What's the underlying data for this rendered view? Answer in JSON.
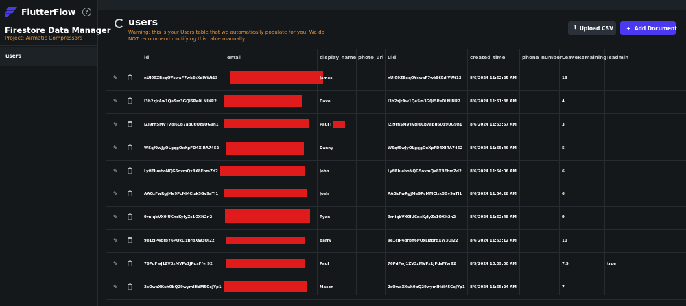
{
  "brand": {
    "name": "FlutterFlow",
    "accent": "#4b39ef",
    "warning_color": "#e8943a",
    "redaction_color": "#e01b1b"
  },
  "sidebar": {
    "title": "Firestore Data Manager",
    "project": "Project: Airmatic Compressors",
    "items": [
      {
        "label": "users"
      }
    ]
  },
  "main": {
    "title": "users",
    "warning": "Warning: this is your Users table that we automatically populate for you. We do NOT recommend modifying this table manually.",
    "buttons": {
      "upload": "Upload CSV",
      "add": "Add Document"
    }
  },
  "table": {
    "columns": [
      "id",
      "email",
      "display_name",
      "photo_url",
      "uid",
      "created_time",
      "phone_number",
      "LeaveRemaining",
      "Isadmin"
    ],
    "rows": [
      {
        "id": "nUI09ZBeqOYswaF7wkEtXdlYWt13",
        "display_name": "James",
        "uid": "nUI09ZBeqOYswaF7wkEtXdlYWt13",
        "created_time": "8/6/2024 11:52:25 AM",
        "leave": "13",
        "isadmin": ""
      },
      {
        "id": "I3h2zJrAw1QeSm3GQl5Pe0LNINR2",
        "display_name": "Dave",
        "uid": "I3h2zJrAw1QeSm3GQl5Pe0LNINR2",
        "created_time": "8/6/2024 11:51:38 AM",
        "leave": "4",
        "isadmin": ""
      },
      {
        "id": "jZl9rnSMVTvdl6Cp7aBu6Qz9UG9n1",
        "display_name": "Paul J",
        "uid": "jZl9rnSMVTvdl6Cp7aBu6Qz9UG9n1",
        "created_time": "8/6/2024 11:53:57 AM",
        "leave": "3",
        "isadmin": ""
      },
      {
        "id": "WSqf9wJyOLgqgOxXpFD4XlRA7452",
        "display_name": "Danny",
        "uid": "WSqf9wJyOLgqgOxXpFD4XlRA7452",
        "created_time": "8/6/2024 11:55:46 AM",
        "leave": "5",
        "isadmin": ""
      },
      {
        "id": "LyfiFlueboNQG5ovmQx8X8EhmZd2",
        "display_name": "John",
        "uid": "LyfiFlueboNQG5ovmQx8X8EhmZd2",
        "created_time": "8/6/2024 11:54:06 AM",
        "leave": "6",
        "isadmin": ""
      },
      {
        "id": "AAGzFwRgjMe9PcMMClzk5Gv9aTI1",
        "display_name": "Josh",
        "uid": "AAGzFwRgjMe9PcMMClzk5Gv9aTI1",
        "created_time": "8/6/2024 11:54:28 AM",
        "leave": "6",
        "isadmin": ""
      },
      {
        "id": "9rniqbVX0lUCncKyIyZs1OXIt2n2",
        "display_name": "Ryan",
        "uid": "9rniqbVX0lUCncKyIyZs1OXIt2n2",
        "created_time": "8/6/2024 11:52:48 AM",
        "leave": "9",
        "isadmin": ""
      },
      {
        "id": "9e1clP4qrbY6PQxLjzprgXW3OI22",
        "display_name": "Barry",
        "uid": "9e1clP4qrbY6PQxLjzprgXW3OI22",
        "created_time": "8/6/2024 11:53:12 AM",
        "leave": "10",
        "isadmin": ""
      },
      {
        "id": "76PdFwJ1ZV3zMVPz1JPdsFfvr92",
        "display_name": "Paul",
        "uid": "76PdFwJ1ZV3zMVPz1JPdsFfvr92",
        "created_time": "8/5/2024 10:09:00 AM",
        "leave": "7.5",
        "isadmin": "true"
      },
      {
        "id": "2sOwaXKuh0bQ29wymIHdM5CeJYp1",
        "display_name": "Mason",
        "uid": "2sOwaXKuh0bQ29wymIHdM5CeJYp1",
        "created_time": "8/6/2024 11:55:24 AM",
        "leave": "7",
        "isadmin": ""
      }
    ]
  }
}
